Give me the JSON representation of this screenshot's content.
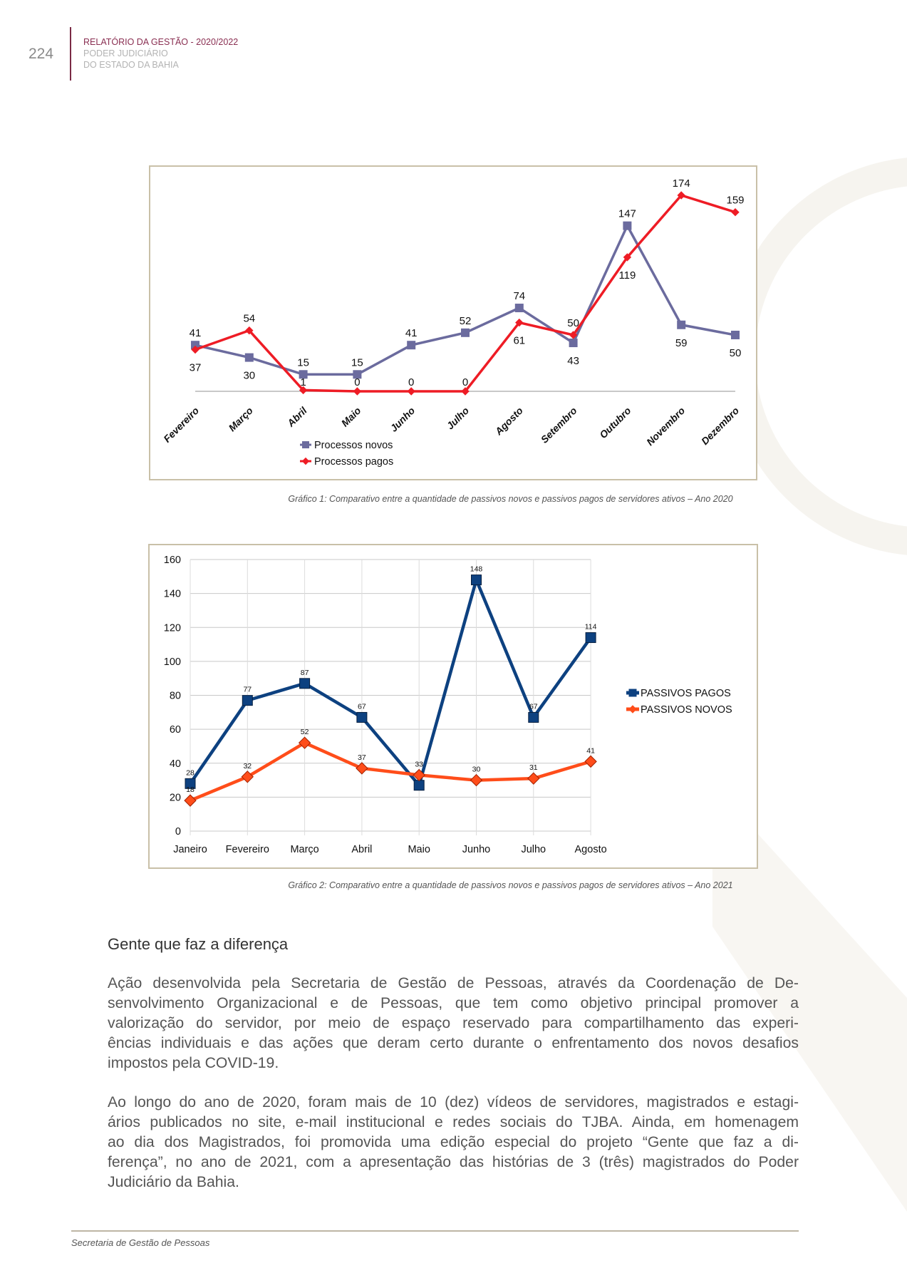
{
  "header": {
    "page_number": "224",
    "title": "RELATÓRIO DA GESTÃO - 2020/2022",
    "subtitle_line1": "PODER JUDICIÁRIO",
    "subtitle_line2": "DO ESTADO DA BAHIA"
  },
  "colors": {
    "accent": "#7a2a45",
    "series1a": "#6b6b9e",
    "series1b": "#ee1c25",
    "series2a": "#0d4180",
    "series2b": "#ff4d1a"
  },
  "chart_data": [
    {
      "type": "line",
      "title": "",
      "categories": [
        "Fevereiro",
        "Março",
        "Abril",
        "Maio",
        "Junho",
        "Julho",
        "Agosto",
        "Setembro",
        "Outubro",
        "Novembro",
        "Dezembro"
      ],
      "series": [
        {
          "name": "Processos novos",
          "values": [
            41,
            30,
            15,
            15,
            41,
            52,
            74,
            43,
            147,
            59,
            50
          ],
          "color": "#6b6b9e",
          "marker": "square"
        },
        {
          "name": "Processos pagos",
          "values": [
            37,
            54,
            1,
            0,
            0,
            0,
            61,
            50,
            119,
            174,
            159
          ],
          "color": "#ee1c25",
          "marker": "diamond"
        }
      ],
      "ylim": [
        0,
        174
      ],
      "grid": false,
      "legend": "bottom-left"
    },
    {
      "type": "line",
      "title": "",
      "categories": [
        "Janeiro",
        "Fevereiro",
        "Março",
        "Abril",
        "Maio",
        "Junho",
        "Julho",
        "Agosto"
      ],
      "series": [
        {
          "name": "PASSIVOS PAGOS",
          "values": [
            28,
            77,
            87,
            67,
            27,
            148,
            67,
            114
          ],
          "color": "#0d4180",
          "marker": "square"
        },
        {
          "name": "PASSIVOS NOVOS",
          "values": [
            18,
            32,
            52,
            37,
            33,
            30,
            31,
            41
          ],
          "color": "#ff4d1a",
          "marker": "diamond"
        }
      ],
      "yticks": [
        "0",
        "20",
        "40",
        "60",
        "80",
        "100",
        "120",
        "140",
        "160"
      ],
      "ylim": [
        0,
        160
      ],
      "grid": true,
      "legend": "right"
    }
  ],
  "captions": {
    "chart1": "Gráfico 1: Comparativo entre a quantidade de passivos novos e passivos pagos de servidores ativos – Ano 2020",
    "chart2": "Gráfico 2: Comparativo entre a quantidade de passivos novos e passivos pagos de servidores ativos – Ano 2021"
  },
  "section": {
    "heading": "Gente que faz a diferença",
    "paragraph1": [
      "Ação desenvolvida pela Secretaria de Gestão de Pessoas, através da Coordenação de De-",
      "senvolvimento Organizacional e de Pessoas, que tem como objetivo principal promover a",
      "valorização do servidor, por meio de espaço reservado para compartilhamento das experi-",
      "ências individuais e das ações que deram certo durante o enfrentamento dos novos desafios",
      "impostos pela COVID-19."
    ],
    "paragraph2": [
      "Ao longo do ano de 2020, foram mais de 10 (dez) vídeos de servidores, magistrados e estagi-",
      "ários publicados no site, e-mail institucional e redes sociais do TJBA. Ainda, em homenagem",
      "ao dia dos Magistrados, foi promovida uma edição especial do projeto “Gente que faz a di-",
      "ferença”, no ano de 2021, com a apresentação das histórias de 3 (três) magistrados do Poder",
      "Judiciário da Bahia."
    ]
  },
  "footer": {
    "text": "Secretaria de Gestão de Pessoas"
  }
}
